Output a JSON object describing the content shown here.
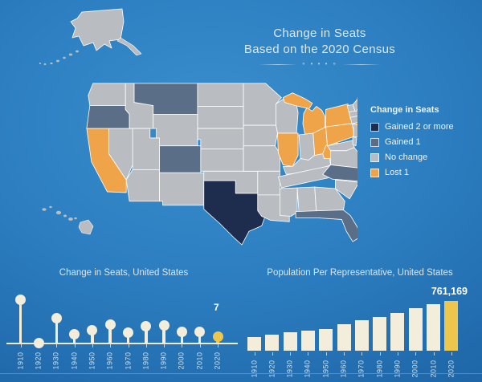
{
  "title": {
    "line1": "Change in Seats",
    "line2": "Based on the 2020 Census",
    "ornament": "∘ • • • ∘"
  },
  "legend": {
    "title": "Change in Seats",
    "items": [
      {
        "key": "gained2",
        "label": "Gained 2 or more",
        "color": "#1e2c4e"
      },
      {
        "key": "gained1",
        "label": "Gained 1",
        "color": "#5b6e88"
      },
      {
        "key": "nochange",
        "label": "No change",
        "color": "#b9bdc1"
      },
      {
        "key": "lost1",
        "label": "Lost 1",
        "color": "#efa44a"
      }
    ]
  },
  "map": {
    "gained_2_or_more": [
      "TX"
    ],
    "gained_1": [
      "OR",
      "MT",
      "CO",
      "NC",
      "FL"
    ],
    "lost_1": [
      "CA",
      "IL",
      "MI",
      "MIUP",
      "OH",
      "PA",
      "NY",
      "WV"
    ],
    "no_change": [
      "WA",
      "ID",
      "NV",
      "UT",
      "AZ",
      "NM",
      "WY",
      "ND",
      "SD",
      "NE",
      "KS",
      "OK",
      "MN",
      "IA",
      "MO",
      "AR",
      "LA",
      "WI",
      "IN",
      "KY",
      "TN",
      "MS",
      "AL",
      "GA",
      "SC",
      "VA",
      "MD",
      "DE",
      "NJ",
      "CT",
      "RI",
      "MA",
      "VT",
      "NH",
      "ME",
      "AK",
      "HI"
    ]
  },
  "chart_data": [
    {
      "type": "bar",
      "variant": "lollipop",
      "title": "Change in Seats, United States",
      "categories": [
        "1910",
        "1920",
        "1930",
        "1940",
        "1950",
        "1960",
        "1970",
        "1980",
        "1990",
        "2000",
        "2010",
        "2020"
      ],
      "values": [
        51,
        0,
        29,
        10,
        15,
        22,
        12,
        20,
        21,
        13,
        13,
        7
      ],
      "ylim": [
        0,
        55
      ],
      "grid": false,
      "highlight_category": "2020",
      "highlight_color": "#eec64c",
      "series_color": "#f3eddb",
      "data_label": {
        "category": "2020",
        "text": "7"
      },
      "x_axis": "years rotated 90°, baseline with ticks"
    },
    {
      "type": "bar",
      "title": "Population Per Representative, United States",
      "categories": [
        "1910",
        "1920",
        "1930",
        "1940",
        "1950",
        "1960",
        "1970",
        "1980",
        "1990",
        "2000",
        "2010",
        "2020"
      ],
      "values": [
        210583,
        243728,
        280675,
        301164,
        334587,
        410481,
        469088,
        510818,
        571477,
        646952,
        710767,
        761169
      ],
      "ylim": [
        0,
        800000
      ],
      "grid": false,
      "highlight_category": "2020",
      "highlight_color": "#eec64c",
      "series_color": "#f3eddb",
      "data_label": {
        "category": "2020",
        "text": "761,169"
      },
      "x_axis": "years rotated 90°, ticks below bars"
    }
  ],
  "colors": {
    "background_center": "#3a8fcd",
    "background_edge": "#155190",
    "state_border": "#ffffff",
    "text": "#dde7f0"
  }
}
